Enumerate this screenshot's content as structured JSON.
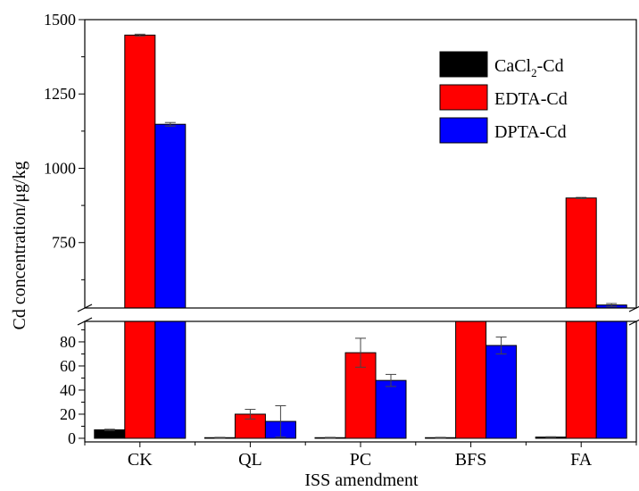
{
  "chart_data": {
    "type": "bar",
    "title": "",
    "xlabel": "ISS amendment",
    "ylabel": "Cd concentration/μg/kg",
    "categories": [
      "CK",
      "QL",
      "PC",
      "BFS",
      "FA"
    ],
    "axis_break": true,
    "y_lower_range": [
      -3,
      97
    ],
    "y_upper_range": [
      530,
      1500
    ],
    "y_lower_ticks": [
      0,
      20,
      40,
      60,
      80
    ],
    "y_upper_ticks": [
      750,
      1000,
      1250,
      1500
    ],
    "legend_position": "top-right",
    "series": [
      {
        "name": "CaCl2-Cd",
        "name_main": "CaCl",
        "name_sub": "2",
        "name_tail": "-Cd",
        "color": "#000000",
        "values": [
          7,
          0.5,
          0.5,
          0.5,
          1
        ],
        "errors": [
          0.5,
          0.3,
          0.3,
          0.3,
          0.3
        ]
      },
      {
        "name": "EDTA-Cd",
        "color": "#ff0000",
        "values": [
          1448,
          20,
          71,
          530,
          900
        ],
        "errors": [
          3,
          4,
          12,
          0,
          2
        ]
      },
      {
        "name": "DPTA-Cd",
        "color": "#0000ff",
        "values": [
          1148,
          14,
          48,
          77,
          540
        ],
        "errors": [
          6,
          13,
          5,
          7,
          5
        ]
      }
    ]
  }
}
